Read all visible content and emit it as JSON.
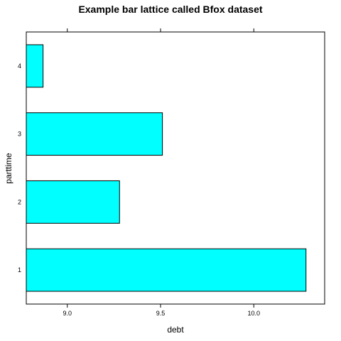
{
  "chart_data": {
    "type": "bar",
    "orientation": "horizontal",
    "title": "Example bar lattice called Bfox dataset",
    "xlabel": "debt",
    "ylabel": "parttime",
    "categories": [
      "1",
      "2",
      "3",
      "4"
    ],
    "values": [
      10.28,
      9.28,
      9.51,
      8.87
    ],
    "xlim": [
      8.78,
      10.38
    ],
    "x_ticks": [
      9.0,
      9.5,
      10.0
    ],
    "x_tick_labels": [
      "9.0",
      "9.5",
      "10.0"
    ],
    "bar_fill": "#00ffff",
    "bar_stroke": "#000000",
    "grid": false,
    "ticks_on_top_and_bottom": true
  }
}
